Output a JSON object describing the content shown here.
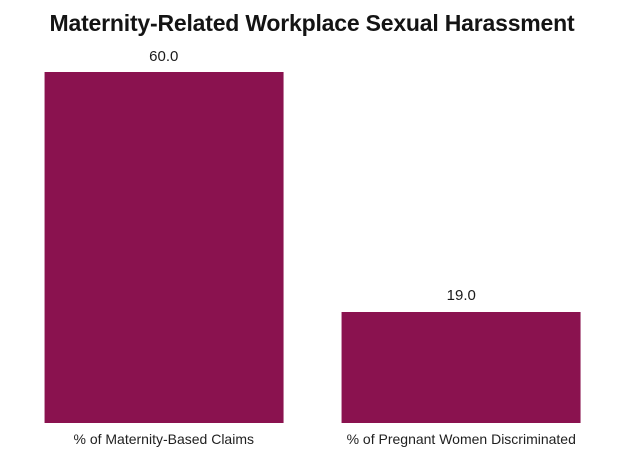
{
  "chart_data": {
    "type": "bar",
    "title": "Maternity-Related Workplace Sexual Harassment",
    "categories": [
      "% of Maternity-Based Claims",
      "% of Pregnant Women Discriminated"
    ],
    "values": [
      60.0,
      19.0
    ],
    "data_labels": [
      "60.0",
      "19.0"
    ],
    "xlabel": "",
    "ylabel": "",
    "ylim": [
      0,
      60
    ],
    "grid": false,
    "legend": false,
    "bar_color": "#8A124F",
    "background_color": "#ffffff",
    "title_color": "#141414",
    "label_color": "#1a1a1a"
  }
}
